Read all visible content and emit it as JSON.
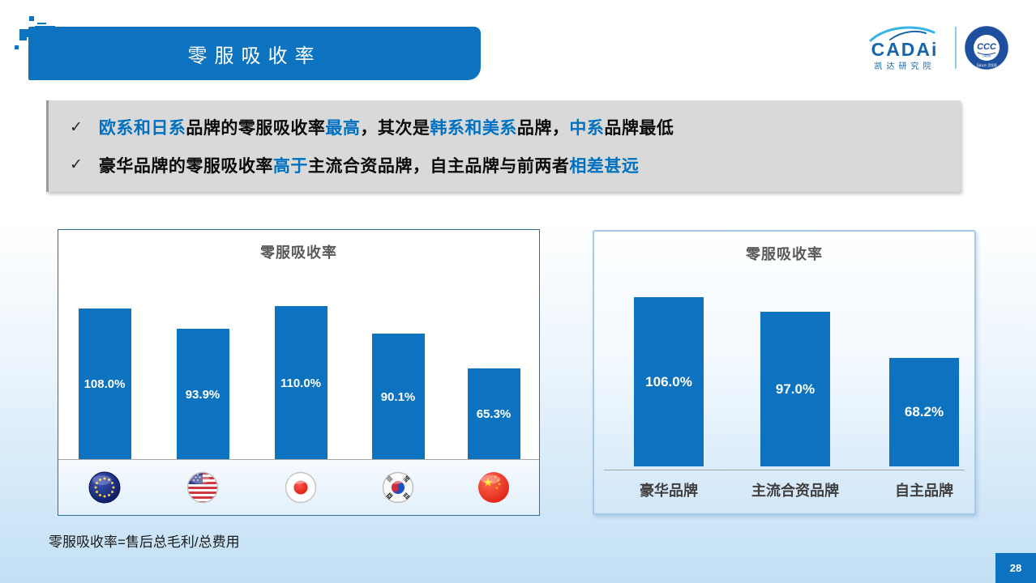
{
  "header": {
    "title": "零服吸收率"
  },
  "logo": {
    "brand": "CADAi",
    "subtitle": "凯达研究院",
    "badge_center": "CCC",
    "badge_caption": "CADAI",
    "badge_year": "Since 2009"
  },
  "insights": {
    "bullet_mark": "✓",
    "items": [
      {
        "segments": [
          {
            "t": "欧系和日系",
            "c": "blue"
          },
          {
            "t": "品牌的零服吸收率",
            "c": "dark"
          },
          {
            "t": "最高",
            "c": "blue"
          },
          {
            "t": "，其次是",
            "c": "dark"
          },
          {
            "t": "韩系和美系",
            "c": "blue"
          },
          {
            "t": "品牌，",
            "c": "dark"
          },
          {
            "t": "中系",
            "c": "blue"
          },
          {
            "t": "品牌最低",
            "c": "dark"
          }
        ]
      },
      {
        "segments": [
          {
            "t": "豪华品牌的零服吸收率",
            "c": "dark"
          },
          {
            "t": "高于",
            "c": "blue"
          },
          {
            "t": "主流合资品牌，自主品牌与前两者",
            "c": "dark"
          },
          {
            "t": "相差甚远",
            "c": "blue"
          }
        ]
      }
    ]
  },
  "chart_data": [
    {
      "type": "bar",
      "title": "零服吸收率",
      "categories": [
        "欧系",
        "美系",
        "日系",
        "韩系",
        "中系"
      ],
      "category_icons": [
        "eu-flag",
        "us-flag",
        "japan-flag",
        "korea-flag",
        "china-flag"
      ],
      "values": [
        108.0,
        93.9,
        110.0,
        90.1,
        65.3
      ],
      "labels": [
        "108.0%",
        "93.9%",
        "110.0%",
        "90.1%",
        "65.3%"
      ],
      "ylim": [
        0,
        120
      ],
      "bar_color": "#0d72c0",
      "legend": "none",
      "grid": false
    },
    {
      "type": "bar",
      "title": "零服吸收率",
      "categories": [
        "豪华品牌",
        "主流合资品牌",
        "自主品牌"
      ],
      "values": [
        106.0,
        97.0,
        68.2
      ],
      "labels": [
        "106.0%",
        "97.0%",
        "68.2%"
      ],
      "ylim": [
        0,
        120
      ],
      "bar_color": "#0d72c0",
      "legend": "none",
      "grid": false
    }
  ],
  "footnote": "零服吸收率=售后总毛利/总费用",
  "page_number": "28",
  "colors": {
    "accent_blue": "#0d72c0",
    "highlight_blue": "#0070c0",
    "insight_bg": "#d9d9d9",
    "chart_title_gray": "#595959"
  }
}
